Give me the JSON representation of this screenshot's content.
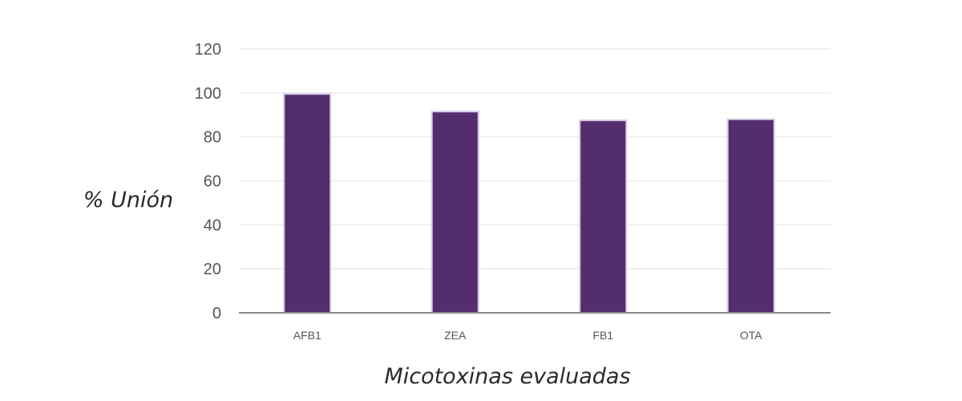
{
  "chart_data": {
    "type": "bar",
    "categories": [
      "AFB1",
      "ZEA",
      "FB1",
      "OTA"
    ],
    "values": [
      99.5,
      91.5,
      87.5,
      88.0
    ],
    "title": "",
    "xlabel": "Micotoxinas evaluadas",
    "ylabel": "% Unión",
    "ylim": [
      0,
      120
    ],
    "yticks": [
      "0",
      "20",
      "40",
      "60",
      "80",
      "100",
      "120"
    ],
    "grid": true,
    "legend": "none",
    "bar_color": "#532d6d",
    "bar_edge_color": "#d8c8e4"
  }
}
